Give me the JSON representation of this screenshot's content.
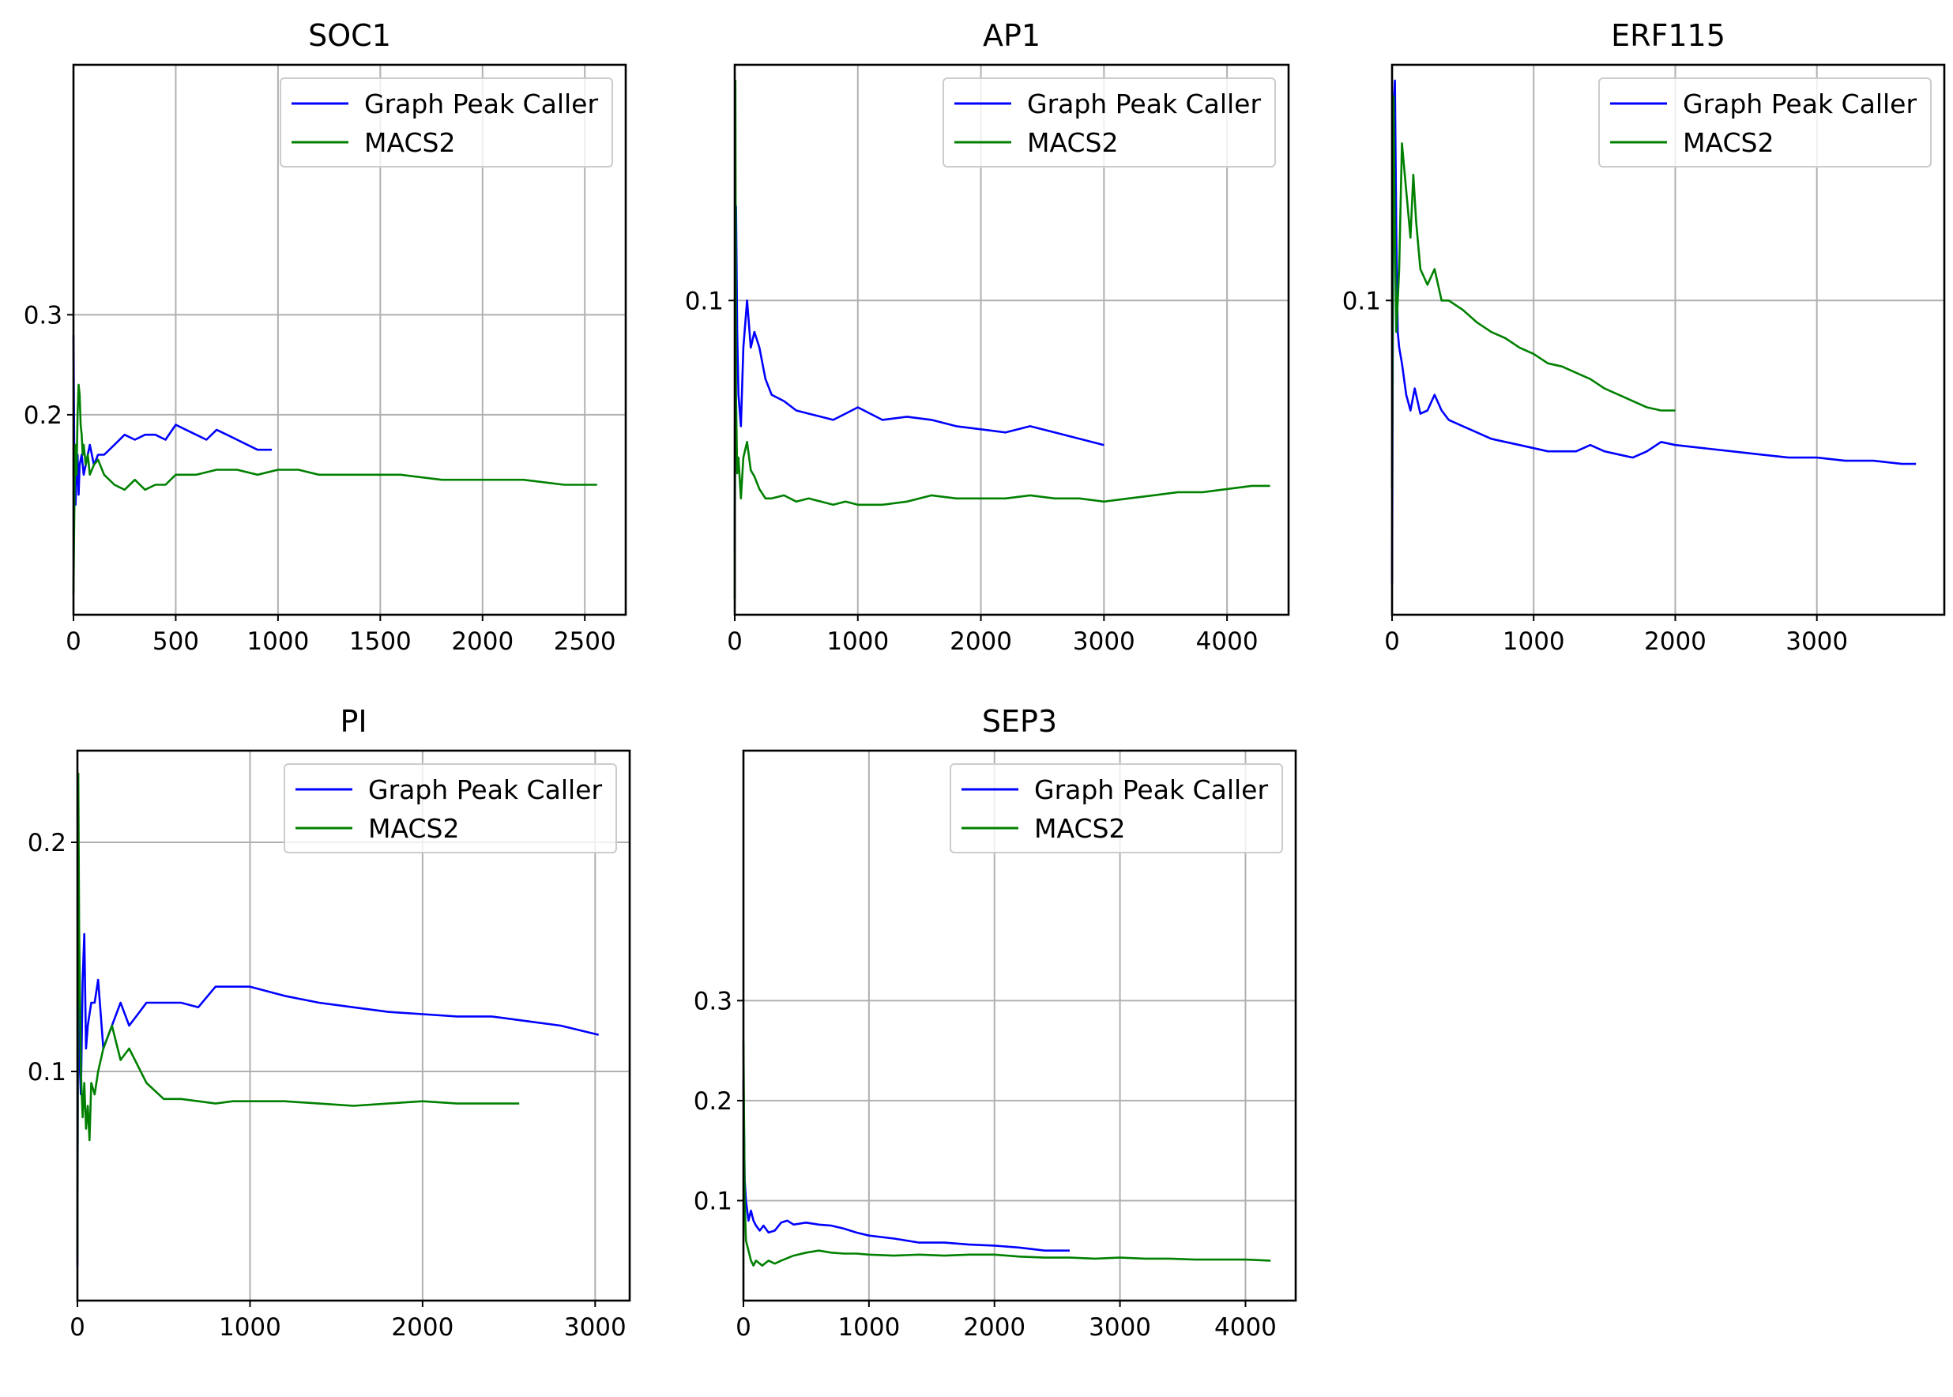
{
  "chart_data": [
    {
      "type": "line",
      "title": "SOC1",
      "xlabel": "",
      "ylabel": "",
      "xlim": [
        0,
        2700
      ],
      "ylim": [
        0.0,
        0.55
      ],
      "xticks": [
        0,
        500,
        1000,
        1500,
        2000,
        2500
      ],
      "xtick_labels": [
        "0",
        "500",
        "1000",
        "1500",
        "2000",
        "2500"
      ],
      "yticks": [
        0.3,
        0.2
      ],
      "ytick_labels": [
        "0.3",
        "0.2"
      ],
      "grid": true,
      "legend": "top-right",
      "series": [
        {
          "name": "Graph Peak Caller",
          "color": "#0000ff",
          "x": [
            0,
            5,
            10,
            15,
            20,
            25,
            30,
            40,
            50,
            60,
            80,
            100,
            120,
            150,
            200,
            250,
            300,
            350,
            400,
            450,
            500,
            550,
            600,
            650,
            700,
            750,
            800,
            850,
            900,
            970
          ],
          "y": [
            0.28,
            0.12,
            0.11,
            0.14,
            0.16,
            0.12,
            0.15,
            0.16,
            0.14,
            0.15,
            0.17,
            0.15,
            0.16,
            0.16,
            0.17,
            0.18,
            0.175,
            0.18,
            0.18,
            0.175,
            0.19,
            0.185,
            0.18,
            0.175,
            0.185,
            0.18,
            0.175,
            0.17,
            0.165,
            0.165
          ]
        },
        {
          "name": "MACS2",
          "color": "#008000",
          "x": [
            0,
            5,
            10,
            15,
            20,
            25,
            30,
            35,
            40,
            45,
            50,
            60,
            70,
            80,
            100,
            120,
            150,
            200,
            250,
            300,
            350,
            400,
            450,
            500,
            600,
            700,
            800,
            900,
            1000,
            1100,
            1200,
            1400,
            1600,
            1800,
            2000,
            2200,
            2400,
            2560
          ],
          "y": [
            0.02,
            0.12,
            0.17,
            0.14,
            0.2,
            0.23,
            0.22,
            0.19,
            0.18,
            0.16,
            0.17,
            0.15,
            0.16,
            0.14,
            0.15,
            0.155,
            0.14,
            0.13,
            0.125,
            0.135,
            0.125,
            0.13,
            0.13,
            0.14,
            0.14,
            0.145,
            0.145,
            0.14,
            0.145,
            0.145,
            0.14,
            0.14,
            0.14,
            0.135,
            0.135,
            0.135,
            0.13,
            0.13
          ]
        }
      ]
    },
    {
      "type": "line",
      "title": "AP1",
      "xlabel": "",
      "ylabel": "",
      "xlim": [
        0,
        4500
      ],
      "ylim": [
        0.0,
        0.175
      ],
      "xticks": [
        0,
        1000,
        2000,
        3000,
        4000
      ],
      "xtick_labels": [
        "0",
        "1000",
        "2000",
        "3000",
        "4000"
      ],
      "yticks": [
        0.1
      ],
      "ytick_labels": [
        "0.1"
      ],
      "grid": true,
      "legend": "top-right",
      "series": [
        {
          "name": "Graph Peak Caller",
          "color": "#0000ff",
          "x": [
            0,
            10,
            20,
            30,
            50,
            70,
            100,
            130,
            160,
            200,
            250,
            300,
            400,
            500,
            600,
            700,
            800,
            900,
            1000,
            1200,
            1400,
            1600,
            1800,
            2000,
            2200,
            2400,
            2600,
            2800,
            3000
          ],
          "y": [
            0.02,
            0.13,
            0.09,
            0.07,
            0.06,
            0.085,
            0.1,
            0.085,
            0.09,
            0.085,
            0.075,
            0.07,
            0.068,
            0.065,
            0.064,
            0.063,
            0.062,
            0.064,
            0.066,
            0.062,
            0.063,
            0.062,
            0.06,
            0.059,
            0.058,
            0.06,
            0.058,
            0.056,
            0.054
          ]
        },
        {
          "name": "MACS2",
          "color": "#008000",
          "x": [
            0,
            5,
            10,
            20,
            30,
            50,
            70,
            100,
            130,
            160,
            200,
            250,
            300,
            400,
            500,
            600,
            700,
            800,
            900,
            1000,
            1200,
            1400,
            1600,
            1800,
            2000,
            2200,
            2400,
            2600,
            2800,
            3000,
            3200,
            3400,
            3600,
            3800,
            4000,
            4200,
            4350
          ],
          "y": [
            0.005,
            0.17,
            0.07,
            0.045,
            0.05,
            0.037,
            0.05,
            0.055,
            0.046,
            0.044,
            0.04,
            0.037,
            0.037,
            0.038,
            0.036,
            0.037,
            0.036,
            0.035,
            0.036,
            0.035,
            0.035,
            0.036,
            0.038,
            0.037,
            0.037,
            0.037,
            0.038,
            0.037,
            0.037,
            0.036,
            0.037,
            0.038,
            0.039,
            0.039,
            0.04,
            0.041,
            0.041
          ]
        }
      ]
    },
    {
      "type": "line",
      "title": "ERF115",
      "xlabel": "",
      "ylabel": "",
      "xlim": [
        0,
        3900
      ],
      "ylim": [
        0.0,
        0.175
      ],
      "xticks": [
        0,
        1000,
        2000,
        3000
      ],
      "xtick_labels": [
        "0",
        "1000",
        "2000",
        "3000"
      ],
      "yticks": [
        0.1
      ],
      "ytick_labels": [
        "0.1"
      ],
      "grid": true,
      "legend": "top-right",
      "series": [
        {
          "name": "Graph Peak Caller",
          "color": "#0000ff",
          "x": [
            0,
            10,
            20,
            30,
            40,
            50,
            70,
            100,
            130,
            160,
            200,
            250,
            300,
            350,
            400,
            500,
            600,
            700,
            800,
            900,
            1000,
            1100,
            1200,
            1300,
            1400,
            1500,
            1600,
            1700,
            1800,
            1900,
            2000,
            2200,
            2400,
            2600,
            2800,
            3000,
            3200,
            3400,
            3600,
            3700
          ],
          "y": [
            0.01,
            0.16,
            0.17,
            0.12,
            0.09,
            0.085,
            0.08,
            0.07,
            0.065,
            0.072,
            0.064,
            0.065,
            0.07,
            0.065,
            0.062,
            0.06,
            0.058,
            0.056,
            0.055,
            0.054,
            0.053,
            0.052,
            0.052,
            0.052,
            0.054,
            0.052,
            0.051,
            0.05,
            0.052,
            0.055,
            0.054,
            0.053,
            0.052,
            0.051,
            0.05,
            0.05,
            0.049,
            0.049,
            0.048,
            0.048
          ]
        },
        {
          "name": "MACS2",
          "color": "#008000",
          "x": [
            0,
            10,
            20,
            30,
            50,
            70,
            90,
            110,
            130,
            150,
            170,
            200,
            250,
            300,
            350,
            400,
            500,
            600,
            700,
            800,
            900,
            1000,
            1100,
            1200,
            1300,
            1400,
            1500,
            1600,
            1700,
            1800,
            1900,
            2000
          ],
          "y": [
            0.04,
            0.165,
            0.12,
            0.09,
            0.11,
            0.15,
            0.14,
            0.13,
            0.12,
            0.14,
            0.125,
            0.11,
            0.105,
            0.11,
            0.1,
            0.1,
            0.097,
            0.093,
            0.09,
            0.088,
            0.085,
            0.083,
            0.08,
            0.079,
            0.077,
            0.075,
            0.072,
            0.07,
            0.068,
            0.066,
            0.065,
            0.065
          ]
        }
      ]
    },
    {
      "type": "line",
      "title": "PI",
      "xlabel": "",
      "ylabel": "",
      "xlim": [
        0,
        3200
      ],
      "ylim": [
        0.0,
        0.24
      ],
      "xticks": [
        0,
        1000,
        2000,
        3000
      ],
      "xtick_labels": [
        "0",
        "1000",
        "2000",
        "3000"
      ],
      "yticks": [
        0.2,
        0.1
      ],
      "ytick_labels": [
        "0.2",
        "0.1"
      ],
      "grid": true,
      "legend": "top-right",
      "series": [
        {
          "name": "Graph Peak Caller",
          "color": "#0000ff",
          "x": [
            0,
            5,
            10,
            20,
            30,
            40,
            50,
            60,
            80,
            100,
            120,
            150,
            200,
            250,
            300,
            350,
            400,
            500,
            600,
            700,
            800,
            900,
            1000,
            1100,
            1200,
            1400,
            1600,
            1800,
            2000,
            2200,
            2400,
            2600,
            2800,
            3020
          ],
          "y": [
            0.015,
            0.17,
            0.11,
            0.09,
            0.14,
            0.16,
            0.11,
            0.12,
            0.13,
            0.13,
            0.14,
            0.11,
            0.12,
            0.13,
            0.12,
            0.125,
            0.13,
            0.13,
            0.13,
            0.128,
            0.137,
            0.137,
            0.137,
            0.135,
            0.133,
            0.13,
            0.128,
            0.126,
            0.125,
            0.124,
            0.124,
            0.122,
            0.12,
            0.116
          ]
        },
        {
          "name": "MACS2",
          "color": "#008000",
          "x": [
            0,
            5,
            10,
            15,
            20,
            30,
            40,
            50,
            60,
            70,
            80,
            100,
            120,
            150,
            200,
            250,
            300,
            400,
            500,
            600,
            700,
            800,
            900,
            1000,
            1200,
            1400,
            1600,
            1800,
            2000,
            2200,
            2400,
            2560
          ],
          "y": [
            0.02,
            0.23,
            0.16,
            0.13,
            0.1,
            0.08,
            0.095,
            0.075,
            0.085,
            0.07,
            0.095,
            0.09,
            0.1,
            0.11,
            0.12,
            0.105,
            0.11,
            0.095,
            0.088,
            0.088,
            0.087,
            0.086,
            0.087,
            0.087,
            0.087,
            0.086,
            0.085,
            0.086,
            0.087,
            0.086,
            0.086,
            0.086
          ]
        }
      ]
    },
    {
      "type": "line",
      "title": "SEP3",
      "xlabel": "",
      "ylabel": "",
      "xlim": [
        0,
        4400
      ],
      "ylim": [
        0.0,
        0.55
      ],
      "xticks": [
        0,
        1000,
        2000,
        3000,
        4000
      ],
      "xtick_labels": [
        "0",
        "1000",
        "2000",
        "3000",
        "4000"
      ],
      "yticks": [
        0.3,
        0.2,
        0.1
      ],
      "ytick_labels": [
        "0.3",
        "0.2",
        "0.1"
      ],
      "grid": true,
      "legend": "top-right",
      "series": [
        {
          "name": "Graph Peak Caller",
          "color": "#0000ff",
          "x": [
            0,
            10,
            20,
            40,
            60,
            80,
            100,
            130,
            160,
            200,
            250,
            300,
            350,
            400,
            500,
            600,
            700,
            800,
            900,
            1000,
            1200,
            1400,
            1600,
            1800,
            2000,
            2200,
            2400,
            2600
          ],
          "y": [
            0.22,
            0.12,
            0.1,
            0.08,
            0.09,
            0.08,
            0.075,
            0.07,
            0.075,
            0.068,
            0.07,
            0.078,
            0.08,
            0.076,
            0.078,
            0.076,
            0.075,
            0.072,
            0.068,
            0.065,
            0.062,
            0.058,
            0.058,
            0.056,
            0.055,
            0.053,
            0.05,
            0.05
          ]
        },
        {
          "name": "MACS2",
          "color": "#008000",
          "x": [
            0,
            10,
            20,
            40,
            60,
            80,
            100,
            150,
            200,
            250,
            300,
            400,
            500,
            600,
            700,
            800,
            900,
            1000,
            1200,
            1400,
            1600,
            1800,
            2000,
            2200,
            2400,
            2600,
            2800,
            3000,
            3200,
            3400,
            3600,
            3800,
            4000,
            4200
          ],
          "y": [
            0.26,
            0.1,
            0.06,
            0.05,
            0.04,
            0.035,
            0.04,
            0.035,
            0.04,
            0.037,
            0.04,
            0.045,
            0.048,
            0.05,
            0.048,
            0.047,
            0.047,
            0.046,
            0.045,
            0.046,
            0.045,
            0.046,
            0.046,
            0.044,
            0.043,
            0.043,
            0.042,
            0.043,
            0.042,
            0.042,
            0.041,
            0.041,
            0.041,
            0.04
          ]
        }
      ]
    }
  ]
}
